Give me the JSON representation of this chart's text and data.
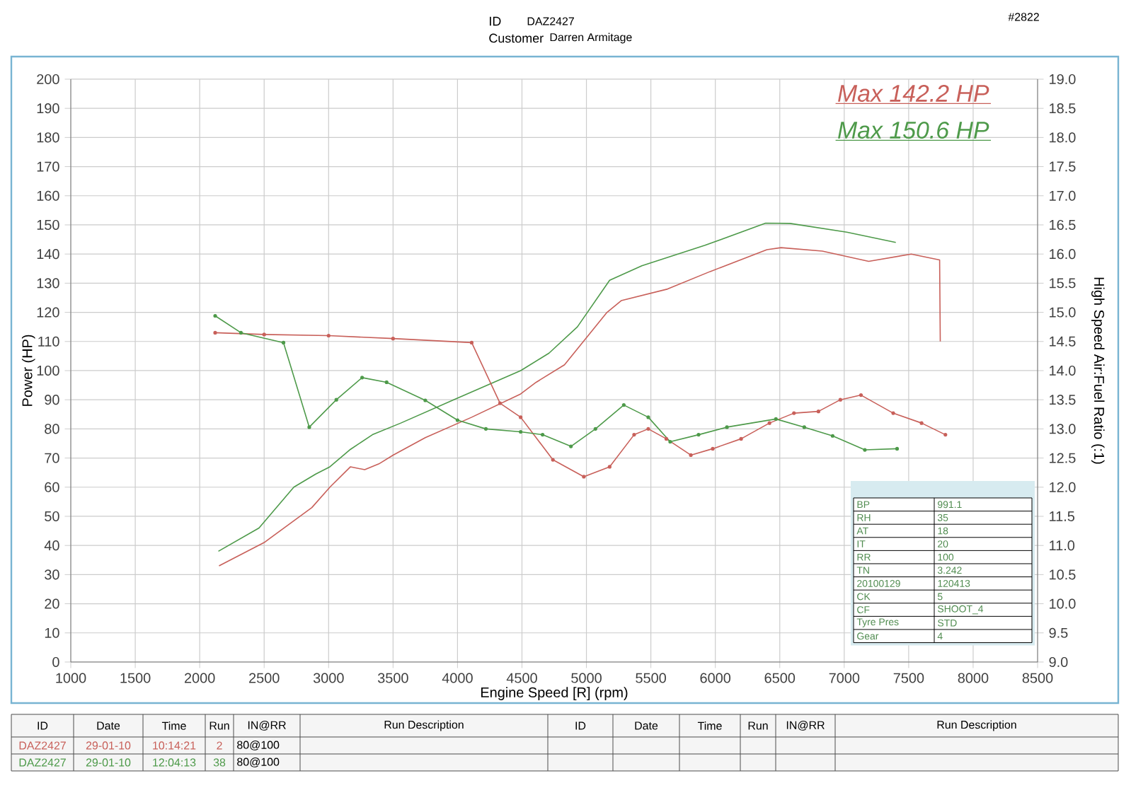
{
  "chart_data": {
    "type": "line",
    "xlabel": "Engine Speed [R] (rpm)",
    "ylabel": "Power (HP)",
    "y2label": "High Speed Air:Fuel Ratio (:1)",
    "xlim": [
      1000,
      8500
    ],
    "xticks": [
      1000,
      1500,
      2000,
      2500,
      3000,
      3500,
      4000,
      4500,
      5000,
      5500,
      6000,
      6500,
      7000,
      7500,
      8000,
      8500
    ],
    "ylim": [
      0,
      200
    ],
    "yticks": [
      0,
      10,
      20,
      30,
      40,
      50,
      60,
      70,
      80,
      90,
      100,
      110,
      120,
      130,
      140,
      150,
      160,
      170,
      180,
      190,
      200
    ],
    "y2lim": [
      9,
      19
    ],
    "y2ticks": [
      {
        "value": 9,
        "label": "9.0"
      },
      9.5,
      {
        "value": 10,
        "label": "10.0"
      },
      10.5,
      {
        "value": 11,
        "label": "11.0"
      },
      11.5,
      {
        "value": 12,
        "label": "12.0"
      },
      12.5,
      {
        "value": 13,
        "label": "13.0"
      },
      13.5,
      {
        "value": 14,
        "label": "14.0"
      },
      14.5,
      {
        "value": 15,
        "label": "15.0"
      },
      15.5,
      {
        "value": 16,
        "label": "16.0"
      },
      16.5,
      {
        "value": 17,
        "label": "17.0"
      },
      17.5,
      {
        "value": 18,
        "label": "18.0"
      },
      18.5,
      {
        "value": 19,
        "label": "19.0"
      }
    ],
    "grid": true,
    "series": [
      {
        "color": "#c8605a",
        "x": [
          2150,
          2500,
          2870,
          3010,
          3170,
          3280,
          3390,
          3500,
          3750,
          4110,
          4490,
          4610,
          4830,
          5050,
          5160,
          5270,
          5630,
          5960,
          6400,
          6510,
          6830,
          7190,
          7520,
          7740,
          7745
        ],
        "values": [
          33,
          41,
          53,
          60,
          67,
          66,
          68,
          71,
          77,
          84,
          92,
          96,
          102,
          114,
          120,
          124,
          128,
          134,
          141.5,
          142.2,
          141,
          137.5,
          140,
          138,
          110
        ]
      },
      {
        "color": "#4e9a4a",
        "x": [
          2145,
          2460,
          2730,
          2900,
          3010,
          3170,
          3340,
          3560,
          3970,
          4490,
          4710,
          4930,
          5180,
          5430,
          5920,
          6390,
          6580,
          7020,
          7400
        ],
        "values": [
          38,
          46,
          60,
          64.5,
          67,
          73,
          78,
          82,
          90,
          100,
          106,
          115,
          131,
          136,
          143,
          150.6,
          150.5,
          147.5,
          144
        ]
      },
      {
        "color": "#c8605a",
        "axis": "y2",
        "marker": "circle",
        "x": [
          2120,
          2500,
          3000,
          3500,
          4110,
          4330,
          4490,
          4740,
          4980,
          5180,
          5370,
          5480,
          5620,
          5810,
          5980,
          6200,
          6420,
          6610,
          6800,
          6970,
          7130,
          7380,
          7600,
          7785
        ],
        "values": [
          14.65,
          14.62,
          14.6,
          14.55,
          14.48,
          13.44,
          13.2,
          12.47,
          12.18,
          12.35,
          12.9,
          13.0,
          12.83,
          12.55,
          12.66,
          12.83,
          13.1,
          13.27,
          13.3,
          13.5,
          13.58,
          13.27,
          13.1,
          12.9
        ]
      },
      {
        "color": "#4e9a4a",
        "axis": "y2",
        "marker": "circle",
        "x": [
          2120,
          2320,
          2650,
          2850,
          3060,
          3260,
          3450,
          3750,
          4000,
          4220,
          4490,
          4660,
          4880,
          5070,
          5290,
          5480,
          5650,
          5870,
          6090,
          6470,
          6690,
          6910,
          7160,
          7410
        ],
        "values": [
          14.94,
          14.65,
          14.48,
          13.03,
          13.5,
          13.88,
          13.8,
          13.49,
          13.15,
          13.0,
          12.95,
          12.9,
          12.7,
          13.0,
          13.41,
          13.2,
          12.78,
          12.9,
          13.03,
          13.17,
          13.03,
          12.88,
          12.64,
          12.66
        ]
      }
    ],
    "annotations": [
      "ID",
      "DAZ2427",
      "Customer",
      "Darren Armitage",
      "#2822",
      "Max 142.2 HP",
      "Max 150.6 HP",
      "BP",
      "991.1",
      "RH",
      "35",
      "AT",
      "18",
      "IT",
      "20",
      "RR",
      "100",
      "TN",
      "3.242",
      "20100129",
      "120413",
      "CK",
      "5",
      "CF",
      "SHOOT_4",
      "Tyre Pres",
      "STD",
      "Gear",
      "4",
      "ID",
      "Date",
      "Time",
      "Run",
      "IN@RR",
      "Run Description",
      "ID",
      "Date",
      "Time",
      "Run",
      "IN@RR",
      "Run Description",
      "DAZ2427",
      "29-01-10",
      "10:14:21",
      "2",
      "80@100",
      "DAZ2427",
      "29-01-10",
      "12:04:13",
      "38",
      "80@100"
    ]
  }
}
